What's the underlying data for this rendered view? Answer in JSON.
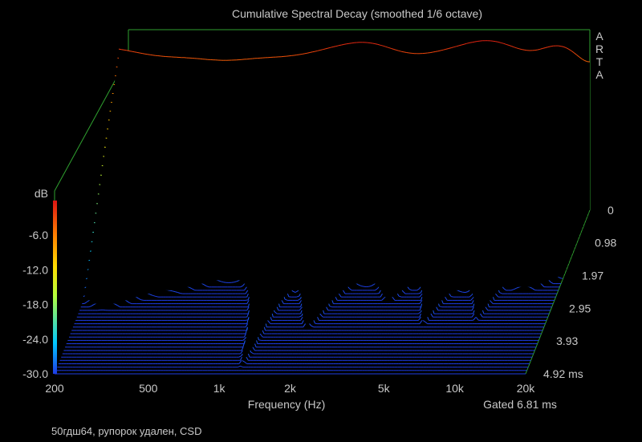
{
  "chart_data": {
    "type": "waterfall",
    "title": "Cumulative Spectral Decay (smoothed 1/6 octave)",
    "brand": [
      "A",
      "R",
      "T",
      "A"
    ],
    "xlabel": "Frequency (Hz)",
    "x_ticks": [
      "200",
      "500",
      "1k",
      "2k",
      "5k",
      "10k",
      "20k"
    ],
    "x_tick_values": [
      200,
      500,
      1000,
      2000,
      5000,
      10000,
      20000
    ],
    "xlim": [
      200,
      20000
    ],
    "x_scale": "log",
    "zlabel": "dB",
    "z_ticks": [
      "-6.0",
      "-12.0",
      "-18.0",
      "-24.0",
      "-30.0"
    ],
    "z_tick_values": [
      -6,
      -12,
      -18,
      -24,
      -30
    ],
    "zlim": [
      -30,
      0
    ],
    "time_ticks": [
      "0",
      "0.98",
      "1.97",
      "2.95",
      "3.93",
      "4.92 ms"
    ],
    "time_tick_values": [
      0,
      0.98,
      1.97,
      2.95,
      3.93,
      4.92
    ],
    "time_range_ms": [
      0,
      4.92
    ],
    "gate_label": "Gated 6.81 ms",
    "slice_count": 50,
    "colorscale": [
      "#1e3ce6",
      "#00c8ff",
      "#b4ff3c",
      "#ffdc00",
      "#ff8000",
      "#dc1414"
    ],
    "grid": false
  },
  "caption": "50гдш64, рупорок удален, CSD"
}
